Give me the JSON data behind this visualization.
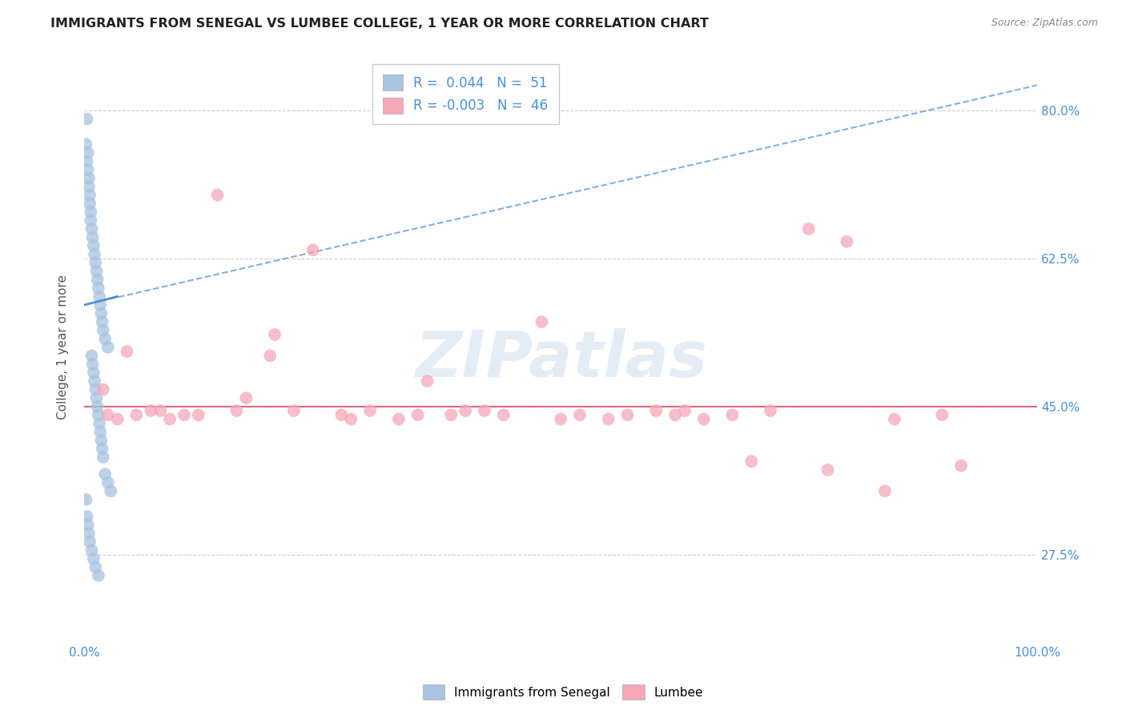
{
  "title": "IMMIGRANTS FROM SENEGAL VS LUMBEE COLLEGE, 1 YEAR OR MORE CORRELATION CHART",
  "source": "Source: ZipAtlas.com",
  "ylabel": "College, 1 year or more",
  "xlim": [
    0,
    100
  ],
  "ylim": [
    17,
    87
  ],
  "yticks": [
    27.5,
    45.0,
    62.5,
    80.0
  ],
  "xticks": [
    0,
    10,
    20,
    30,
    40,
    50,
    60,
    70,
    80,
    90,
    100
  ],
  "legend_r_blue": "0.044",
  "legend_n_blue": "51",
  "legend_r_pink": "-0.003",
  "legend_n_pink": "46",
  "blue_color": "#a8c4e0",
  "pink_color": "#f4a8b8",
  "trend_blue_color": "#5090d0",
  "trend_pink_color": "#e05878",
  "watermark": "ZIPatlas",
  "blue_x": [
    0.3,
    0.4,
    0.5,
    0.6,
    0.7,
    0.8,
    0.9,
    1.0,
    1.1,
    1.2,
    1.3,
    1.4,
    1.5,
    1.6,
    1.7,
    1.8,
    1.9,
    2.0,
    2.2,
    2.5,
    0.2,
    0.3,
    0.4,
    0.5,
    0.6,
    0.7,
    0.8,
    0.9,
    1.0,
    1.1,
    1.2,
    1.3,
    1.4,
    1.5,
    1.6,
    1.7,
    1.8,
    1.9,
    2.0,
    2.2,
    2.5,
    2.8,
    0.2,
    0.3,
    0.4,
    0.5,
    0.6,
    0.8,
    1.0,
    1.2,
    1.5
  ],
  "blue_y": [
    79,
    75,
    72,
    70,
    68,
    66,
    65,
    64,
    63,
    62,
    61,
    60,
    59,
    58,
    57,
    56,
    55,
    54,
    53,
    52,
    76,
    74,
    73,
    71,
    69,
    67,
    51,
    50,
    49,
    48,
    47,
    46,
    45,
    44,
    43,
    42,
    41,
    40,
    39,
    37,
    36,
    35,
    34,
    32,
    31,
    30,
    29,
    28,
    27,
    26,
    25
  ],
  "pink_x": [
    2.0,
    3.5,
    5.5,
    8.0,
    10.5,
    14.0,
    17.0,
    19.5,
    22.0,
    24.0,
    27.0,
    30.0,
    33.0,
    36.0,
    38.5,
    42.0,
    48.0,
    52.0,
    55.0,
    60.0,
    62.0,
    65.0,
    68.0,
    72.0,
    76.0,
    80.0,
    85.0,
    90.0,
    2.5,
    4.5,
    7.0,
    9.0,
    12.0,
    16.0,
    20.0,
    28.0,
    35.0,
    40.0,
    44.0,
    50.0,
    57.0,
    63.0,
    70.0,
    78.0,
    84.0,
    92.0
  ],
  "pink_y": [
    47.0,
    43.5,
    44.0,
    44.5,
    44.0,
    70.0,
    46.0,
    51.0,
    44.5,
    63.5,
    44.0,
    44.5,
    43.5,
    48.0,
    44.0,
    44.5,
    55.0,
    44.0,
    43.5,
    44.5,
    44.0,
    43.5,
    44.0,
    44.5,
    66.0,
    64.5,
    43.5,
    44.0,
    44.0,
    51.5,
    44.5,
    43.5,
    44.0,
    44.5,
    53.5,
    43.5,
    44.0,
    44.5,
    44.0,
    43.5,
    44.0,
    44.5,
    38.5,
    37.5,
    35.0,
    38.0
  ],
  "trend_blue_x0": 0.0,
  "trend_blue_x1": 100.0,
  "trend_blue_y0": 57.0,
  "trend_blue_y1": 83.0,
  "trend_blue_solid_x0": 0.0,
  "trend_blue_solid_x1": 3.5,
  "trend_blue_solid_y0": 57.0,
  "trend_blue_solid_y1": 58.0
}
